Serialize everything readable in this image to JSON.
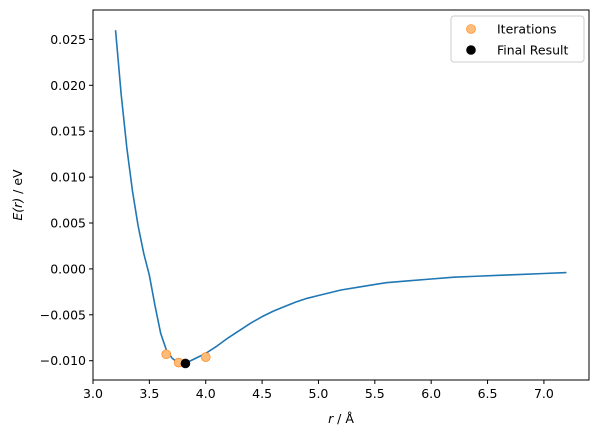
{
  "chart_data": {
    "type": "line",
    "xlabel": {
      "var": "r",
      "unit": " / Å"
    },
    "ylabel": {
      "var": "E(r)",
      "unit": " / eV"
    },
    "xlim": [
      3.0,
      7.4
    ],
    "ylim": [
      -0.0121,
      0.0282
    ],
    "xticks": [
      3.0,
      3.5,
      4.0,
      4.5,
      5.0,
      5.5,
      6.0,
      6.5,
      7.0
    ],
    "xtick_labels": [
      "3.0",
      "3.5",
      "4.0",
      "4.5",
      "5.0",
      "5.5",
      "6.0",
      "6.5",
      "7.0"
    ],
    "yticks": [
      -0.01,
      -0.005,
      0.0,
      0.005,
      0.01,
      0.015,
      0.02,
      0.025
    ],
    "ytick_labels": [
      "−0.010",
      "−0.005",
      "0.000",
      "0.005",
      "0.010",
      "0.015",
      "0.020",
      "0.025"
    ],
    "grid": false,
    "legend_position": "top-right",
    "series": [
      {
        "kind": "line",
        "color": "#1f77b4",
        "x": [
          3.2,
          3.25,
          3.3,
          3.35,
          3.4,
          3.45,
          3.5,
          3.55,
          3.6,
          3.65,
          3.7,
          3.75,
          3.8,
          3.85,
          3.9,
          3.95,
          4.0,
          4.1,
          4.2,
          4.3,
          4.4,
          4.5,
          4.6,
          4.7,
          4.8,
          4.9,
          5.0,
          5.2,
          5.4,
          5.6,
          5.8,
          6.0,
          6.2,
          6.4,
          6.6,
          6.8,
          7.0,
          7.2
        ],
        "y": [
          0.026,
          0.019,
          0.0132,
          0.0085,
          0.0047,
          0.0017,
          -0.0007,
          -0.004,
          -0.007,
          -0.0088,
          -0.0097,
          -0.0102,
          -0.0103,
          -0.0101,
          -0.0098,
          -0.0095,
          -0.0092,
          -0.0084,
          -0.0075,
          -0.0067,
          -0.0059,
          -0.0052,
          -0.0046,
          -0.0041,
          -0.0036,
          -0.0032,
          -0.0029,
          -0.0023,
          -0.0019,
          -0.0015,
          -0.0013,
          -0.0011,
          -0.0009,
          -0.0008,
          -0.0007,
          -0.0006,
          -0.0005,
          -0.0004
        ]
      },
      {
        "kind": "points",
        "name": "Iterations",
        "color": "#ffbb78",
        "edge": "#ff7f0e",
        "x": [
          3.65,
          3.76,
          4.0
        ],
        "y": [
          -0.0093,
          -0.0102,
          -0.0096
        ]
      },
      {
        "kind": "points",
        "name": "Final Result",
        "color": "#000000",
        "edge": "#000000",
        "x": [
          3.82
        ],
        "y": [
          -0.0103
        ]
      }
    ]
  }
}
